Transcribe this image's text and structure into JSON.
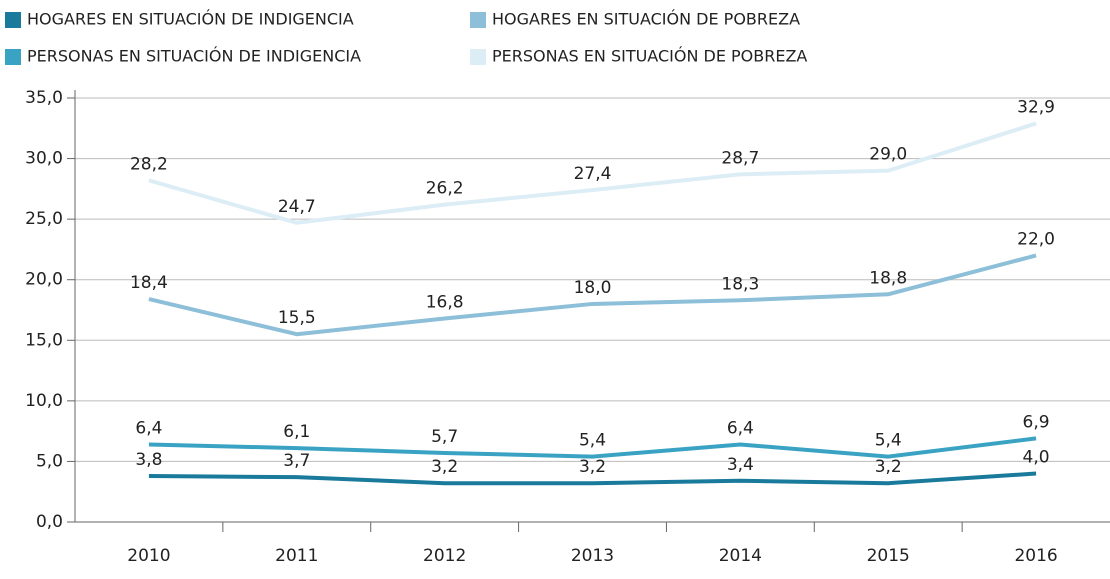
{
  "chart_data": {
    "type": "line",
    "categories": [
      "2010",
      "2011",
      "2012",
      "2013",
      "2014",
      "2015",
      "2016"
    ],
    "series": [
      {
        "name": "HOGARES EN SITUACIÓN DE INDIGENCIA",
        "color": "#1a7a9c",
        "values": [
          3.8,
          3.7,
          3.2,
          3.2,
          3.4,
          3.2,
          4.0
        ],
        "value_labels": [
          "3,8",
          "3,7",
          "3,2",
          "3,2",
          "3,4",
          "3,2",
          "4,0"
        ]
      },
      {
        "name": "HOGARES EN SITUACIÓN DE POBREZA",
        "color": "#8dbfd9",
        "values": [
          18.4,
          15.5,
          16.8,
          18.0,
          18.3,
          18.8,
          22.0
        ],
        "value_labels": [
          "18,4",
          "15,5",
          "16,8",
          "18,0",
          "18,3",
          "18,8",
          "22,0"
        ]
      },
      {
        "name": "PERSONAS EN SITUACIÓN DE INDIGENCIA",
        "color": "#3aa3c4",
        "values": [
          6.4,
          6.1,
          5.7,
          5.4,
          6.4,
          5.4,
          6.9
        ],
        "value_labels": [
          "6,4",
          "6,1",
          "5,7",
          "5,4",
          "6,4",
          "5,4",
          "6,9"
        ]
      },
      {
        "name": "PERSONAS EN SITUACIÓN DE POBREZA",
        "color": "#dcedf5",
        "values": [
          28.2,
          24.7,
          26.2,
          27.4,
          28.7,
          29.0,
          32.9
        ],
        "value_labels": [
          "28,2",
          "24,7",
          "26,2",
          "27,4",
          "28,7",
          "29,0",
          "32,9"
        ]
      }
    ],
    "ylim": [
      0,
      35
    ],
    "yticks": [
      {
        "value": 0,
        "label": "0,0"
      },
      {
        "value": 5,
        "label": "5,0"
      },
      {
        "value": 10,
        "label": "10,0"
      },
      {
        "value": 15,
        "label": "15,0"
      },
      {
        "value": 20,
        "label": "20,0"
      },
      {
        "value": 25,
        "label": "25,0"
      },
      {
        "value": 30,
        "label": "30,0"
      },
      {
        "value": 35,
        "label": "35,0"
      }
    ],
    "grid": true
  }
}
